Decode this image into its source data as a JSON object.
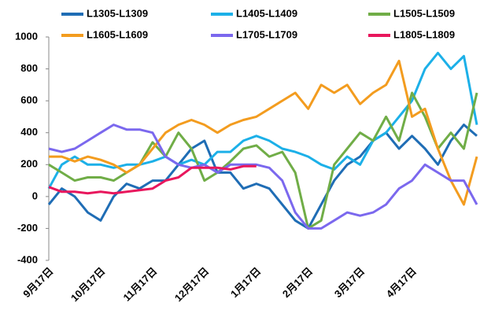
{
  "chart_data": {
    "type": "line",
    "categories": [
      "9月17日",
      null,
      null,
      null,
      "10月17日",
      null,
      null,
      null,
      "11月17日",
      null,
      null,
      null,
      "12月17日",
      null,
      null,
      null,
      "1月17日",
      null,
      null,
      null,
      "2月17日",
      null,
      null,
      null,
      "3月17日",
      null,
      null,
      null,
      "4月17日",
      null,
      null,
      null,
      null,
      null
    ],
    "ylim": [
      -400,
      1000
    ],
    "yticks": [
      -400,
      -200,
      0,
      200,
      400,
      600,
      800,
      1000
    ],
    "grid": false,
    "series": [
      {
        "name": "L1305-L1309",
        "color": "#1f6db5",
        "values": [
          -50,
          50,
          0,
          -100,
          -150,
          0,
          80,
          50,
          100,
          100,
          200,
          300,
          350,
          150,
          150,
          50,
          80,
          50,
          -50,
          -150,
          -200,
          -50,
          100,
          200,
          250,
          350,
          400,
          300,
          380,
          300,
          200,
          350,
          450,
          380
        ]
      },
      {
        "name": "L1405-L1409",
        "color": "#1cb0e8",
        "values": [
          50,
          200,
          250,
          200,
          200,
          180,
          200,
          200,
          220,
          250,
          200,
          230,
          200,
          280,
          280,
          350,
          380,
          350,
          300,
          280,
          250,
          200,
          170,
          250,
          200,
          350,
          400,
          500,
          600,
          800,
          900,
          800,
          880,
          450
        ]
      },
      {
        "name": "L1505-L1509",
        "color": "#70ad47",
        "values": [
          200,
          150,
          100,
          120,
          120,
          100,
          150,
          200,
          340,
          250,
          400,
          300,
          100,
          150,
          220,
          300,
          320,
          250,
          280,
          150,
          -200,
          -150,
          200,
          300,
          400,
          350,
          500,
          350,
          650,
          500,
          300,
          400,
          300,
          650
        ]
      },
      {
        "name": "L1605-L1609",
        "color": "#f39c1f",
        "values": [
          250,
          250,
          220,
          250,
          230,
          200,
          150,
          200,
          300,
          400,
          450,
          480,
          450,
          400,
          450,
          480,
          500,
          550,
          600,
          650,
          550,
          700,
          650,
          700,
          580,
          650,
          700,
          850,
          500,
          550,
          300,
          100,
          -50,
          250
        ]
      },
      {
        "name": "L1705-L1709",
        "color": "#7b68ee",
        "values": [
          300,
          280,
          300,
          350,
          400,
          450,
          420,
          420,
          400,
          250,
          200,
          180,
          200,
          150,
          200,
          200,
          200,
          180,
          100,
          -100,
          -200,
          -200,
          -150,
          -100,
          -120,
          -100,
          -50,
          50,
          100,
          200,
          150,
          100,
          100,
          -50
        ]
      },
      {
        "name": "L1805-L1809",
        "color": "#e8175d",
        "values": [
          60,
          30,
          30,
          20,
          30,
          20,
          30,
          40,
          50,
          100,
          120,
          180,
          180,
          180,
          170,
          190,
          190,
          null,
          null,
          null,
          null,
          null,
          null,
          null,
          null,
          null,
          null,
          null,
          null,
          null,
          null,
          null,
          null,
          null
        ]
      }
    ]
  }
}
